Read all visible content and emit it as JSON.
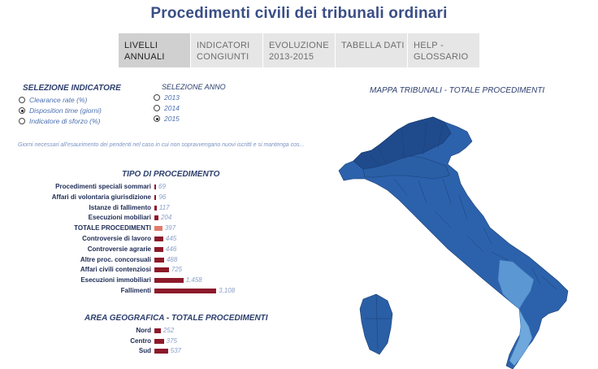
{
  "title": "Procedimenti civili dei tribunali ordinari",
  "tabs": [
    {
      "label1": "LIVELLI",
      "label2": "ANNUALI",
      "active": true
    },
    {
      "label1": "INDICATORI",
      "label2": "CONGIUNTI",
      "active": false
    },
    {
      "label1": "EVOLUZIONE",
      "label2": "2013-2015",
      "active": false
    },
    {
      "label1": "TABELLA DATI",
      "label2": "",
      "active": false
    },
    {
      "label1": "HELP -",
      "label2": "GLOSSARIO",
      "active": false
    }
  ],
  "indicator": {
    "heading": "SELEZIONE INDICATORE",
    "options": [
      {
        "label": "Clearance rate (%)",
        "selected": false
      },
      {
        "label": "Disposition time (giorni)",
        "selected": true
      },
      {
        "label": "Indicatore di sforzo (%)",
        "selected": false
      }
    ]
  },
  "year": {
    "heading": "SELEZIONE ANNO",
    "options": [
      {
        "label": "2013",
        "selected": false
      },
      {
        "label": "2014",
        "selected": false
      },
      {
        "label": "2015",
        "selected": true
      }
    ]
  },
  "description": "Giorni necessari all'esaurimento dei pendenti nel caso in cui non sopravvengano nuovi iscritti e si mantenga cos...",
  "map": {
    "title": "MAPPA TRIBUNALI - TOTALE PROCEDIMENTI"
  },
  "colors": {
    "bar": "#8c1a2a",
    "bar_highlight": "#e07a6e",
    "title": "#3a4e86",
    "map_dark": "#1f4a8c",
    "map_mid": "#2e67b1",
    "map_light": "#6ea8dc"
  },
  "chart_data": [
    {
      "type": "bar",
      "title": "TIPO DI PROCEDIMENTO",
      "orientation": "horizontal",
      "categories": [
        "Procedimenti speciali sommari",
        "Affari di volontaria giurisdizione",
        "Istanze di fallimento",
        "Esecuzioni mobiliari",
        "TOTALE PROCEDIMENTI",
        "Controversie di lavoro",
        "Controversie agrarie",
        "Altre proc. concorsuali",
        "Affari civili contenziosi",
        "Esecuzioni immobiliari",
        "Fallimenti"
      ],
      "values": [
        69,
        96,
        117,
        204,
        397,
        445,
        446,
        488,
        725,
        1458,
        3108
      ],
      "value_labels": [
        "69",
        "96",
        "117",
        "204",
        "397",
        "445",
        "446",
        "488",
        "725",
        "1,458",
        "3,108"
      ],
      "highlight": "TOTALE PROCEDIMENTI"
    },
    {
      "type": "bar",
      "title": "AREA GEOGRAFICA - TOTALE PROCEDIMENTI",
      "orientation": "horizontal",
      "categories": [
        "Nord",
        "Centro",
        "Sud"
      ],
      "values": [
        252,
        375,
        537
      ],
      "value_labels": [
        "252",
        "375",
        "537"
      ]
    }
  ]
}
